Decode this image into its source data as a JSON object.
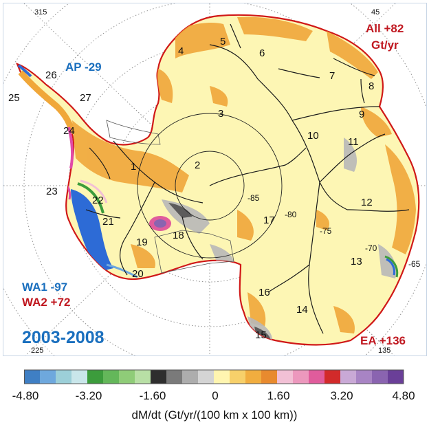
{
  "period_label": "2003-2008",
  "stats": {
    "all": "All +82",
    "all_unit": "Gt/yr",
    "ap": "AP -29",
    "wa1": "WA1 -97",
    "wa2": "WA2 +72",
    "ea": "EA +136"
  },
  "longitude_labels": [
    "315",
    "45",
    "225",
    "135"
  ],
  "latitude_labels": [
    "-85",
    "-80",
    "-75",
    "-70",
    "-65"
  ],
  "basins": [
    "1",
    "2",
    "3",
    "4",
    "5",
    "6",
    "7",
    "8",
    "9",
    "10",
    "11",
    "12",
    "13",
    "14",
    "15",
    "16",
    "17",
    "18",
    "19",
    "20",
    "21",
    "22",
    "23",
    "24",
    "25",
    "26",
    "27"
  ],
  "colorbar": {
    "title": "dM/dt (Gt/yr/(100 km x 100 km))",
    "ticks": [
      "-4.80",
      "-3.20",
      "-1.60",
      "0",
      "1.60",
      "3.20",
      "4.80"
    ],
    "colors": [
      "#3f7fc4",
      "#6ea8dd",
      "#9ccfd8",
      "#c9e6ea",
      "#3c9c3c",
      "#64b75a",
      "#8fcc78",
      "#b8dfa5",
      "#2e2e2e",
      "#7a7a7a",
      "#adadad",
      "#d4d4d4",
      "#fff5b0",
      "#f7d06a",
      "#f1ad3f",
      "#e88a2e",
      "#f2c0d5",
      "#ec98bd",
      "#e05c9c",
      "#d22a2a",
      "#c9a9d6",
      "#a884c4",
      "#8a64b0",
      "#6a3f98"
    ]
  },
  "colors": {
    "ice_fill": "#fdf6b4",
    "coast": "#d01818",
    "gain": "#f0a73a",
    "loss_blue": "#2d6bd6",
    "loss_pink": "#e24aa8",
    "gray": "#b8b8b8",
    "dark": "#555555"
  }
}
